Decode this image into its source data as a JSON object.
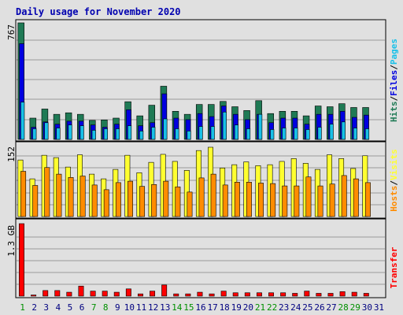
{
  "chart_data": {
    "type": "bar",
    "title": "Daily usage for November 2020",
    "days": [
      "1",
      "2",
      "3",
      "4",
      "5",
      "6",
      "7",
      "8",
      "9",
      "10",
      "11",
      "12",
      "13",
      "14",
      "15",
      "16",
      "17",
      "18",
      "19",
      "20",
      "21",
      "22",
      "23",
      "24",
      "25",
      "26",
      "27",
      "28",
      "29",
      "30",
      "31"
    ],
    "weekend_days": [
      "1",
      "7",
      "8",
      "14",
      "15",
      "21",
      "22",
      "28",
      "29"
    ],
    "colors": {
      "hits": "#1f7a55",
      "files": "#0000e0",
      "pages": "#18c0e8",
      "visits": "#ffff30",
      "hosts": "#ff8c00",
      "transfer": "#ff0000",
      "weekend": "#009000",
      "weekday": "#000080"
    },
    "panels": {
      "top": {
        "max_label": "767",
        "ylim": [
          0,
          767
        ],
        "legend": [
          "Hits",
          "Files",
          "Pages"
        ],
        "series": [
          {
            "name": "Hits",
            "values": [
              767,
              140,
              200,
              165,
              175,
              165,
              125,
              128,
              140,
              248,
              155,
              225,
              350,
              185,
              165,
              230,
              230,
              250,
              215,
              190,
              255,
              170,
              185,
              185,
              155,
              220,
              215,
              235,
              210,
              210,
              0
            ]
          },
          {
            "name": "Files",
            "values": [
              630,
              80,
              115,
              100,
              120,
              120,
              95,
              80,
              100,
              195,
              90,
              110,
              300,
              140,
              130,
              170,
              150,
              220,
              165,
              130,
              165,
              110,
              140,
              140,
              100,
              165,
              165,
              185,
              145,
              160,
              0
            ]
          },
          {
            "name": "Pages",
            "values": [
              245,
              70,
              110,
              75,
              95,
              90,
              60,
              70,
              70,
              90,
              55,
              80,
              135,
              70,
              55,
              85,
              85,
              180,
              95,
              70,
              165,
              65,
              75,
              75,
              65,
              80,
              100,
              115,
              75,
              70,
              0
            ]
          }
        ]
      },
      "middle": {
        "max_label": "152",
        "ylim": [
          0,
          152
        ],
        "legend": [
          "Hosts",
          "Visits"
        ],
        "series": [
          {
            "name": "Visits",
            "values": [
              120,
              80,
              130,
              125,
              105,
              131,
              90,
              80,
              100,
              130,
              93,
              115,
              132,
              117,
              98,
              140,
              147,
              103,
              110,
              116,
              108,
              110,
              117,
              123,
              113,
              100,
              131,
              123,
              102,
              129,
              0
            ]
          },
          {
            "name": "Hosts",
            "values": [
              96,
              66,
              104,
              90,
              83,
              86,
              67,
              57,
              72,
              75,
              64,
              68,
              75,
              63,
              52,
              82,
              90,
              67,
              73,
              73,
              71,
              70,
              65,
              65,
              84,
              65,
              69,
              87,
              80,
              72,
              0
            ]
          }
        ]
      },
      "bottom": {
        "max_label": "1.3 GB",
        "ylim": [
          0,
          1.3
        ],
        "legend": [
          "Transfer"
        ],
        "series": [
          {
            "name": "Transfer",
            "values": [
              1.3,
              0.02,
              0.1,
              0.1,
              0.07,
              0.18,
              0.09,
              0.09,
              0.07,
              0.13,
              0.04,
              0.09,
              0.2,
              0.04,
              0.04,
              0.07,
              0.04,
              0.09,
              0.06,
              0.06,
              0.06,
              0.06,
              0.06,
              0.05,
              0.09,
              0.05,
              0.05,
              0.08,
              0.07,
              0.05,
              0
            ]
          }
        ]
      }
    }
  }
}
